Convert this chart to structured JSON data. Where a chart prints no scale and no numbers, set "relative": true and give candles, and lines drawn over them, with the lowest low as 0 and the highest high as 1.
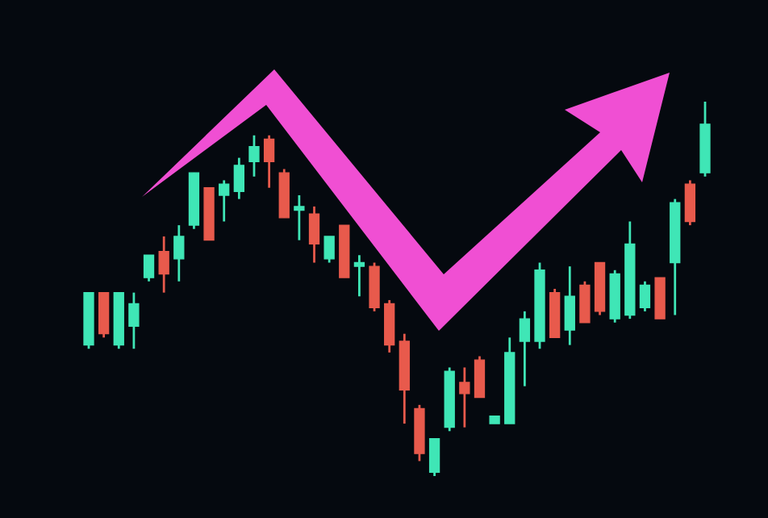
{
  "chart_data": {
    "type": "candlestick",
    "relative": true,
    "categories": [
      null,
      null,
      null,
      null,
      null,
      null,
      null,
      null,
      null,
      null,
      null,
      null,
      null,
      null,
      null,
      null,
      null,
      null,
      null,
      null,
      null,
      null,
      null,
      null,
      null,
      null,
      null,
      null,
      null,
      null,
      null,
      null,
      null,
      null,
      null,
      null,
      null,
      null,
      null,
      null,
      null,
      null
    ],
    "colors": [
      "#3fe6b6",
      "#e85a4c",
      "#3fe6b6",
      "#3fe6b6",
      "#3fe6b6",
      "#e85a4c",
      "#3fe6b6",
      "#3fe6b6",
      "#e85a4c",
      "#3fe6b6",
      "#3fe6b6",
      "#3fe6b6",
      "#e85a4c",
      "#e85a4c",
      "#3fe6b6",
      "#e85a4c",
      "#3fe6b6",
      "#e85a4c",
      "#3fe6b6",
      "#e85a4c",
      "#e85a4c",
      "#e85a4c",
      "#e85a4c",
      "#3fe6b6",
      "#3fe6b6",
      "#e85a4c",
      "#e85a4c",
      "#3fe6b6",
      "#3fe6b6",
      "#3fe6b6",
      "#3fe6b6",
      "#e85a4c",
      "#3fe6b6",
      "#e85a4c",
      "#e85a4c",
      "#3fe6b6",
      "#3fe6b6",
      "#3fe6b6",
      "#e85a4c",
      "#3fe6b6",
      "#e85a4c",
      "#3fe6b6"
    ],
    "ohlc": [
      [
        0.35,
        0.49,
        0.34,
        0.49
      ],
      [
        0.49,
        0.49,
        0.37,
        0.38
      ],
      [
        0.35,
        0.49,
        0.34,
        0.49
      ],
      [
        0.4,
        0.49,
        0.34,
        0.46
      ],
      [
        0.53,
        0.59,
        0.52,
        0.59
      ],
      [
        0.6,
        0.64,
        0.49,
        0.54
      ],
      [
        0.58,
        0.67,
        0.52,
        0.64
      ],
      [
        0.67,
        0.81,
        0.66,
        0.81
      ],
      [
        0.77,
        0.77,
        0.63,
        0.63
      ],
      [
        0.75,
        0.79,
        0.68,
        0.78
      ],
      [
        0.76,
        0.85,
        0.74,
        0.83
      ],
      [
        0.84,
        0.91,
        0.8,
        0.88
      ],
      [
        0.9,
        0.91,
        0.77,
        0.84
      ],
      [
        0.81,
        0.82,
        0.69,
        0.69
      ],
      [
        0.71,
        0.75,
        0.63,
        0.72
      ],
      [
        0.7,
        0.72,
        0.57,
        0.62
      ],
      [
        0.58,
        0.64,
        0.57,
        0.64
      ],
      [
        0.67,
        0.67,
        0.53,
        0.53
      ],
      [
        0.56,
        0.59,
        0.48,
        0.57
      ],
      [
        0.56,
        0.57,
        0.44,
        0.45
      ],
      [
        0.46,
        0.47,
        0.33,
        0.35
      ],
      [
        0.36,
        0.38,
        0.14,
        0.23
      ],
      [
        0.18,
        0.19,
        0.04,
        0.06
      ],
      [
        0.01,
        0.1,
        0.0,
        0.1
      ],
      [
        0.13,
        0.29,
        0.12,
        0.28
      ],
      [
        0.25,
        0.29,
        0.13,
        0.22
      ],
      [
        0.31,
        0.32,
        0.21,
        0.21
      ],
      [
        0.14,
        0.16,
        0.14,
        0.16
      ],
      [
        0.14,
        0.37,
        0.14,
        0.33
      ],
      [
        0.36,
        0.44,
        0.24,
        0.42
      ],
      [
        0.36,
        0.57,
        0.34,
        0.55
      ],
      [
        0.49,
        0.5,
        0.37,
        0.37
      ],
      [
        0.39,
        0.56,
        0.35,
        0.48
      ],
      [
        0.51,
        0.52,
        0.41,
        0.41
      ],
      [
        0.57,
        0.57,
        0.43,
        0.44
      ],
      [
        0.42,
        0.55,
        0.41,
        0.54
      ],
      [
        0.43,
        0.68,
        0.42,
        0.62
      ],
      [
        0.45,
        0.52,
        0.44,
        0.51
      ],
      [
        0.53,
        0.53,
        0.42,
        0.42
      ],
      [
        0.57,
        0.74,
        0.43,
        0.73
      ],
      [
        0.78,
        0.79,
        0.67,
        0.68
      ],
      [
        0.81,
        1.0,
        0.8,
        0.94
      ]
    ]
  }
}
